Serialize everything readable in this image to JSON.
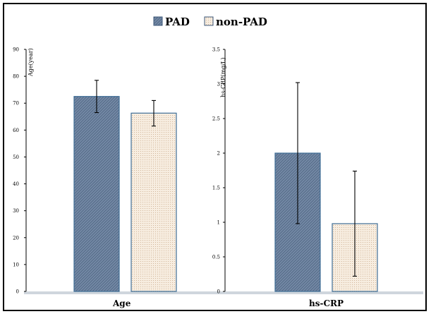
{
  "legend": [
    {
      "name": "PAD",
      "color": "#6f87a3"
    },
    {
      "name": "non-PAD",
      "color": "#f2e6d6"
    }
  ],
  "chart_data": [
    {
      "type": "bar",
      "ylabel": "Age(year)",
      "category": "Age",
      "ylim": [
        0,
        90
      ],
      "yticks": [
        "0",
        "10",
        "20",
        "30",
        "40",
        "50",
        "60",
        "70",
        "80",
        "90"
      ],
      "series": [
        {
          "name": "PAD",
          "value": 72.5,
          "err_low": 66.5,
          "err_high": 78.5
        },
        {
          "name": "non-PAD",
          "value": 66.3,
          "err_low": 61.5,
          "err_high": 71.0
        }
      ]
    },
    {
      "type": "bar",
      "ylabel": "hs-CRP(mg/L)",
      "category": "hs-CRP",
      "ylim": [
        0,
        3.5
      ],
      "yticks": [
        "0",
        "0.5",
        "1",
        "1.5",
        "2",
        "2.5",
        "3",
        "3.5"
      ],
      "series": [
        {
          "name": "PAD",
          "value": 2.0,
          "err_low": 0.98,
          "err_high": 3.02
        },
        {
          "name": "non-PAD",
          "value": 0.98,
          "err_low": 0.22,
          "err_high": 1.74
        }
      ]
    }
  ]
}
